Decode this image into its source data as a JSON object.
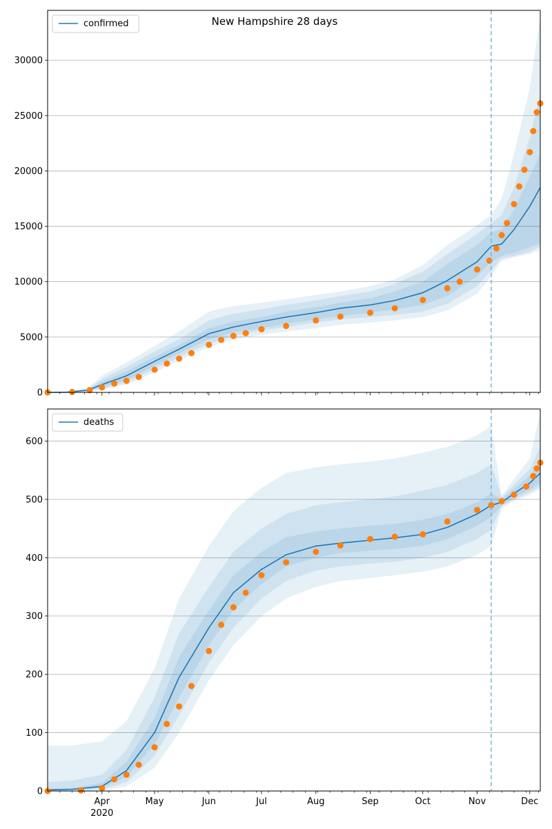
{
  "title": "New Hampshire 28 days",
  "colors": {
    "model_line": "#1f77b4",
    "observed_points": "#ff7f0e",
    "band": "#1f77b4",
    "forecast_marker": "#7fb3d5",
    "grid": "#b0b0b0"
  },
  "x_axis": {
    "month_ticks": [
      "Apr",
      "May",
      "Jun",
      "Jul",
      "Aug",
      "Sep",
      "Oct",
      "Nov",
      "Dec"
    ],
    "year_label": "2020"
  },
  "chart_data": [
    {
      "type": "line",
      "name": "confirmed-panel",
      "legend": "confirmed",
      "ylim": [
        0,
        34500
      ],
      "yticks": [
        0,
        5000,
        10000,
        15000,
        20000,
        25000,
        30000
      ],
      "grid": "horizontal",
      "legend_placement": "top-left",
      "forecast_start": "2020-11-09",
      "x_range": [
        "2020-03-01",
        "2020-12-07"
      ],
      "model": {
        "x": [
          "2020-03-01",
          "2020-03-12",
          "2020-03-24",
          "2020-04-01",
          "2020-04-15",
          "2020-05-01",
          "2020-05-15",
          "2020-06-01",
          "2020-06-15",
          "2020-07-01",
          "2020-07-15",
          "2020-08-01",
          "2020-08-15",
          "2020-09-01",
          "2020-09-15",
          "2020-10-01",
          "2020-10-15",
          "2020-11-01",
          "2020-11-09",
          "2020-11-15",
          "2020-11-22",
          "2020-12-01",
          "2020-12-07"
        ],
        "y": [
          0,
          20,
          200,
          700,
          1500,
          2800,
          3900,
          5300,
          5900,
          6400,
          6800,
          7200,
          7600,
          7900,
          8300,
          9000,
          10100,
          11800,
          13200,
          13400,
          14700,
          16800,
          18500
        ],
        "bands": [
          {
            "lower": [
              0,
              10,
              150,
              500,
              1100,
              2400,
              3500,
              4800,
              5400,
              5800,
              6200,
              6600,
              6900,
              7200,
              7500,
              7900,
              8700,
              10500,
              11800,
              12300,
              12600,
              13100,
              13500
            ],
            "upper": [
              0,
              30,
              260,
              950,
              1900,
              3200,
              4300,
              5800,
              6400,
              6800,
              7300,
              7700,
              8100,
              8500,
              9100,
              10000,
              11600,
              13300,
              14500,
              14700,
              16500,
              19500,
              21500
            ]
          },
          {
            "lower": [
              0,
              5,
              100,
              350,
              900,
              2100,
              3200,
              4400,
              5100,
              5600,
              5900,
              6300,
              6600,
              6800,
              7000,
              7300,
              8000,
              9600,
              11000,
              12100,
              12300,
              12700,
              13200
            ],
            "upper": [
              0,
              40,
              320,
              1200,
              2300,
              3700,
              4800,
              6500,
              7100,
              7500,
              7900,
              8300,
              8700,
              9100,
              9800,
              10900,
              12500,
              14300,
              15300,
              16000,
              18500,
              23000,
              27000
            ]
          },
          {
            "lower": [
              0,
              2,
              50,
              250,
              700,
              1800,
              2900,
              4100,
              4800,
              5200,
              5500,
              5800,
              6100,
              6300,
              6500,
              6800,
              7400,
              8900,
              10500,
              11900,
              12200,
              12500,
              12900
            ],
            "upper": [
              0,
              60,
              400,
              1500,
              2700,
              4200,
              5500,
              7300,
              7800,
              8100,
              8400,
              8800,
              9100,
              9600,
              10200,
              11500,
              13300,
              15100,
              16000,
              17500,
              21500,
              27500,
              34000
            ]
          }
        ]
      },
      "observed": [
        {
          "x": "2020-03-01",
          "y": 0
        },
        {
          "x": "2020-03-15",
          "y": 40
        },
        {
          "x": "2020-03-25",
          "y": 200
        },
        {
          "x": "2020-04-01",
          "y": 450
        },
        {
          "x": "2020-04-08",
          "y": 800
        },
        {
          "x": "2020-04-15",
          "y": 1050
        },
        {
          "x": "2020-04-22",
          "y": 1400
        },
        {
          "x": "2020-05-01",
          "y": 2050
        },
        {
          "x": "2020-05-08",
          "y": 2600
        },
        {
          "x": "2020-05-15",
          "y": 3050
        },
        {
          "x": "2020-05-22",
          "y": 3550
        },
        {
          "x": "2020-06-01",
          "y": 4300
        },
        {
          "x": "2020-06-08",
          "y": 4750
        },
        {
          "x": "2020-06-15",
          "y": 5100
        },
        {
          "x": "2020-06-22",
          "y": 5350
        },
        {
          "x": "2020-07-01",
          "y": 5700
        },
        {
          "x": "2020-07-15",
          "y": 6000
        },
        {
          "x": "2020-08-01",
          "y": 6500
        },
        {
          "x": "2020-08-15",
          "y": 6850
        },
        {
          "x": "2020-09-01",
          "y": 7200
        },
        {
          "x": "2020-09-15",
          "y": 7600
        },
        {
          "x": "2020-10-01",
          "y": 8350
        },
        {
          "x": "2020-10-15",
          "y": 9400
        },
        {
          "x": "2020-10-22",
          "y": 10000
        },
        {
          "x": "2020-11-01",
          "y": 11100
        },
        {
          "x": "2020-11-08",
          "y": 11900
        },
        {
          "x": "2020-11-12",
          "y": 13000
        },
        {
          "x": "2020-11-15",
          "y": 14200
        },
        {
          "x": "2020-11-18",
          "y": 15300
        },
        {
          "x": "2020-11-22",
          "y": 17000
        },
        {
          "x": "2020-11-25",
          "y": 18600
        },
        {
          "x": "2020-11-28",
          "y": 20100
        },
        {
          "x": "2020-12-01",
          "y": 21700
        },
        {
          "x": "2020-12-03",
          "y": 23600
        },
        {
          "x": "2020-12-05",
          "y": 25300
        },
        {
          "x": "2020-12-07",
          "y": 26100
        }
      ]
    },
    {
      "type": "line",
      "name": "deaths-panel",
      "legend": "deaths",
      "ylim": [
        0,
        655
      ],
      "yticks": [
        0,
        100,
        200,
        300,
        400,
        500,
        600
      ],
      "grid": "horizontal",
      "legend_placement": "top-left",
      "forecast_start": "2020-11-09",
      "x_range": [
        "2020-03-01",
        "2020-12-07"
      ],
      "model": {
        "x": [
          "2020-03-01",
          "2020-03-15",
          "2020-04-01",
          "2020-04-15",
          "2020-05-01",
          "2020-05-15",
          "2020-06-01",
          "2020-06-15",
          "2020-07-01",
          "2020-07-15",
          "2020-08-01",
          "2020-08-15",
          "2020-09-01",
          "2020-09-15",
          "2020-10-01",
          "2020-10-15",
          "2020-11-01",
          "2020-11-09",
          "2020-11-15",
          "2020-11-22",
          "2020-12-01",
          "2020-12-07"
        ],
        "y": [
          2,
          3,
          8,
          35,
          100,
          195,
          280,
          340,
          380,
          405,
          420,
          425,
          430,
          434,
          440,
          452,
          475,
          490,
          495,
          510,
          528,
          545
        ],
        "bands": [
          {
            "lower": [
              1,
              2,
              5,
              25,
              80,
              160,
              250,
              310,
              355,
              385,
              400,
              408,
              412,
              415,
              420,
              432,
              455,
              470,
              490,
              503,
              517,
              528
            ],
            "upper": [
              3,
              5,
              14,
              50,
              125,
              230,
              310,
              370,
              410,
              435,
              445,
              450,
              455,
              458,
              465,
              475,
              495,
              510,
              500,
              518,
              540,
              565
            ]
          },
          {
            "lower": [
              0,
              1,
              3,
              15,
              60,
              130,
              220,
              280,
              330,
              360,
              378,
              385,
              390,
              393,
              400,
              410,
              432,
              448,
              488,
              500,
              512,
              522
            ],
            "upper": [
              15,
              18,
              28,
              70,
              160,
              270,
              350,
              410,
              450,
              475,
              490,
              495,
              500,
              505,
              515,
              525,
              545,
              560,
              503,
              525,
              552,
              590
            ]
          },
          {
            "lower": [
              0,
              0,
              1,
              8,
              40,
              100,
              190,
              250,
              300,
              330,
              350,
              360,
              365,
              370,
              376,
              385,
              405,
              420,
              485,
              497,
              508,
              518
            ],
            "upper": [
              78,
              78,
              85,
              120,
              210,
              330,
              420,
              480,
              520,
              545,
              555,
              560,
              565,
              570,
              580,
              590,
              610,
              625,
              506,
              535,
              570,
              648
            ]
          }
        ]
      },
      "observed": [
        {
          "x": "2020-03-01",
          "y": 0
        },
        {
          "x": "2020-03-20",
          "y": 1
        },
        {
          "x": "2020-04-01",
          "y": 5
        },
        {
          "x": "2020-04-08",
          "y": 20
        },
        {
          "x": "2020-04-15",
          "y": 28
        },
        {
          "x": "2020-04-22",
          "y": 45
        },
        {
          "x": "2020-05-01",
          "y": 75
        },
        {
          "x": "2020-05-08",
          "y": 115
        },
        {
          "x": "2020-05-15",
          "y": 145
        },
        {
          "x": "2020-05-22",
          "y": 180
        },
        {
          "x": "2020-06-01",
          "y": 240
        },
        {
          "x": "2020-06-08",
          "y": 285
        },
        {
          "x": "2020-06-15",
          "y": 315
        },
        {
          "x": "2020-06-22",
          "y": 340
        },
        {
          "x": "2020-07-01",
          "y": 370
        },
        {
          "x": "2020-07-15",
          "y": 392
        },
        {
          "x": "2020-08-01",
          "y": 410
        },
        {
          "x": "2020-08-15",
          "y": 421
        },
        {
          "x": "2020-09-01",
          "y": 432
        },
        {
          "x": "2020-09-15",
          "y": 436
        },
        {
          "x": "2020-10-01",
          "y": 440
        },
        {
          "x": "2020-10-15",
          "y": 462
        },
        {
          "x": "2020-11-01",
          "y": 482
        },
        {
          "x": "2020-11-09",
          "y": 490
        },
        {
          "x": "2020-11-15",
          "y": 497
        },
        {
          "x": "2020-11-22",
          "y": 508
        },
        {
          "x": "2020-11-29",
          "y": 522
        },
        {
          "x": "2020-12-03",
          "y": 540
        },
        {
          "x": "2020-12-05",
          "y": 553
        },
        {
          "x": "2020-12-07",
          "y": 563
        }
      ]
    }
  ]
}
